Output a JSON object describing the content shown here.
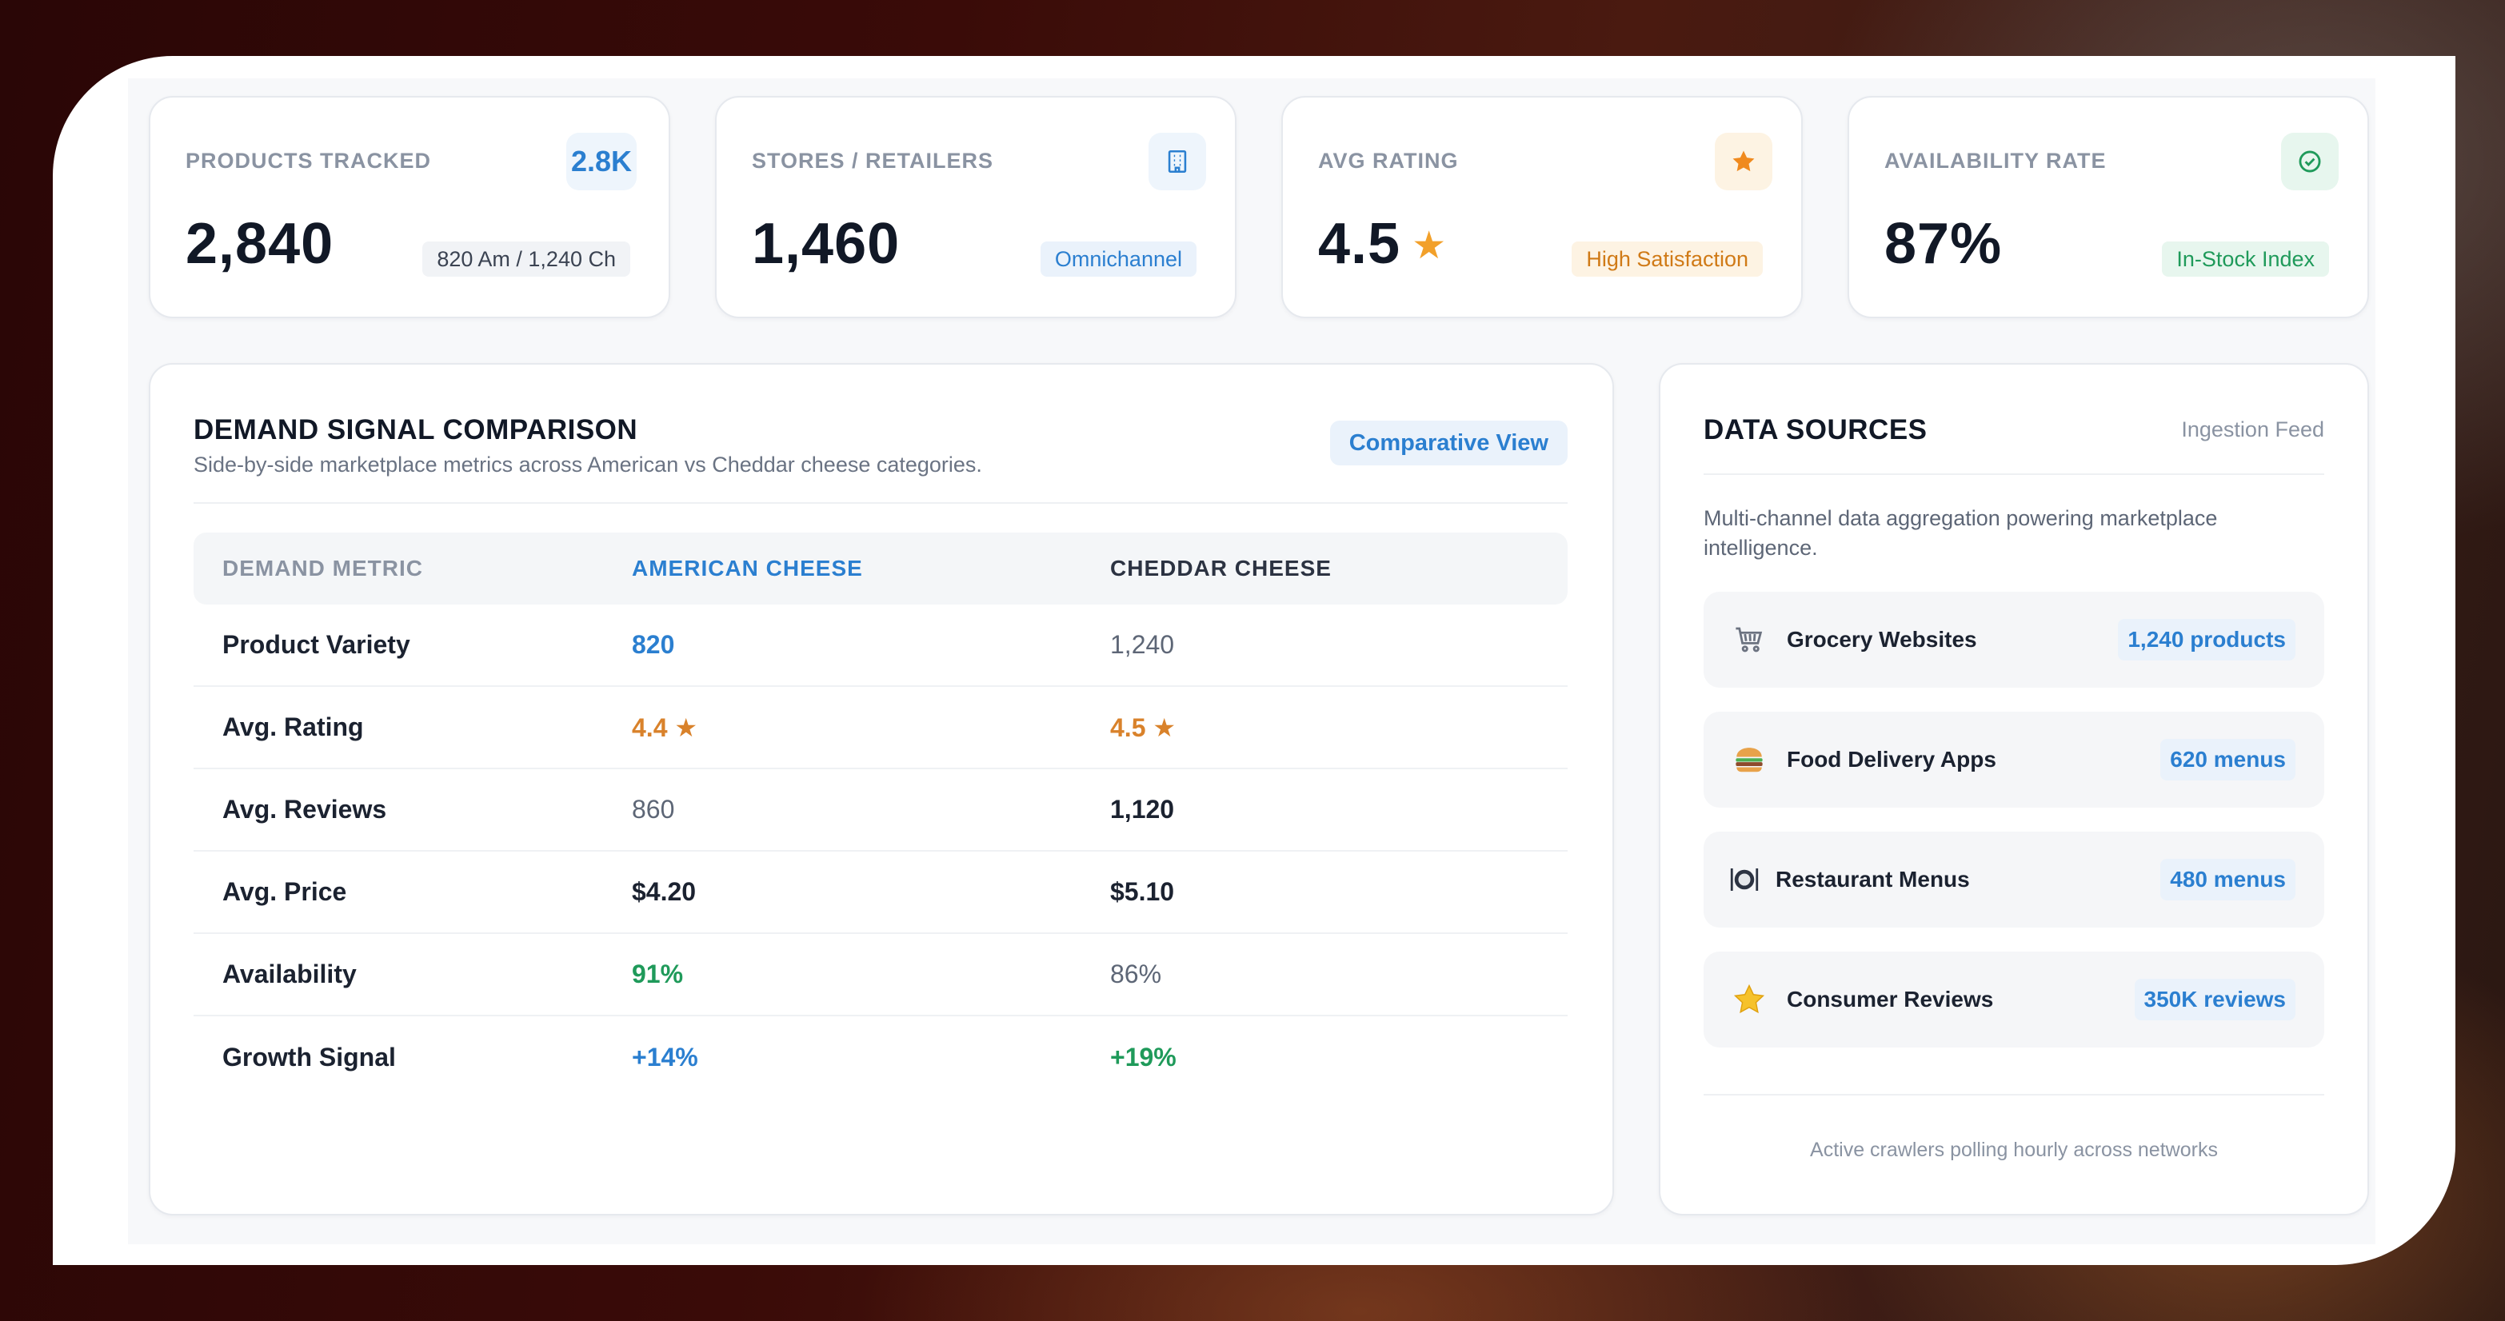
{
  "kpis": [
    {
      "label": "PRODUCTS TRACKED",
      "value": "2,840",
      "badge": "2.8K",
      "chip": "820 Am / 1,240 Ch",
      "icon": "none"
    },
    {
      "label": "STORES / RETAILERS",
      "value": "1,460",
      "chip": "Omnichannel",
      "icon": "building-icon"
    },
    {
      "label": "AVG RATING",
      "value": "4.5",
      "value_suffix": "★",
      "chip": "High Satisfaction",
      "icon": "star-icon"
    },
    {
      "label": "AVAILABILITY RATE",
      "value": "87%",
      "chip": "In-Stock Index",
      "icon": "check-circle-icon"
    }
  ],
  "demand": {
    "title": "DEMAND SIGNAL COMPARISON",
    "subtitle": "Side-by-side marketplace metrics across American vs Cheddar cheese categories.",
    "view_label": "Comparative View",
    "columns": [
      "DEMAND METRIC",
      "AMERICAN CHEESE",
      "CHEDDAR CHEESE"
    ],
    "rows": [
      {
        "metric": "Product Variety",
        "american": "820",
        "cheddar": "1,240"
      },
      {
        "metric": "Avg. Rating",
        "american": "4.4 ★",
        "cheddar": "4.5 ★"
      },
      {
        "metric": "Avg. Reviews",
        "american": "860",
        "cheddar": "1,120"
      },
      {
        "metric": "Avg. Price",
        "american": "$4.20",
        "cheddar": "$5.10"
      },
      {
        "metric": "Availability",
        "american": "91%",
        "cheddar": "86%"
      },
      {
        "metric": "Growth Signal",
        "american": "+14%",
        "cheddar": "+19%"
      }
    ]
  },
  "sources": {
    "title": "DATA SOURCES",
    "feed_label": "Ingestion Feed",
    "description": "Multi-channel data aggregation powering marketplace intelligence.",
    "items": [
      {
        "name": "Grocery Websites",
        "count": "1,240 products",
        "icon": "shopping-cart-icon"
      },
      {
        "name": "Food Delivery Apps",
        "count": "620 menus",
        "icon": "burger-icon"
      },
      {
        "name": "Restaurant Menus",
        "count": "480 menus",
        "icon": "plate-icon"
      },
      {
        "name": "Consumer Reviews",
        "count": "350K reviews",
        "icon": "star-icon"
      }
    ],
    "footer": "Active crawlers polling hourly across networks"
  },
  "colors": {
    "accent_blue": "#2b7fd0",
    "accent_orange": "#d9822b",
    "accent_green": "#1f9a5a"
  }
}
